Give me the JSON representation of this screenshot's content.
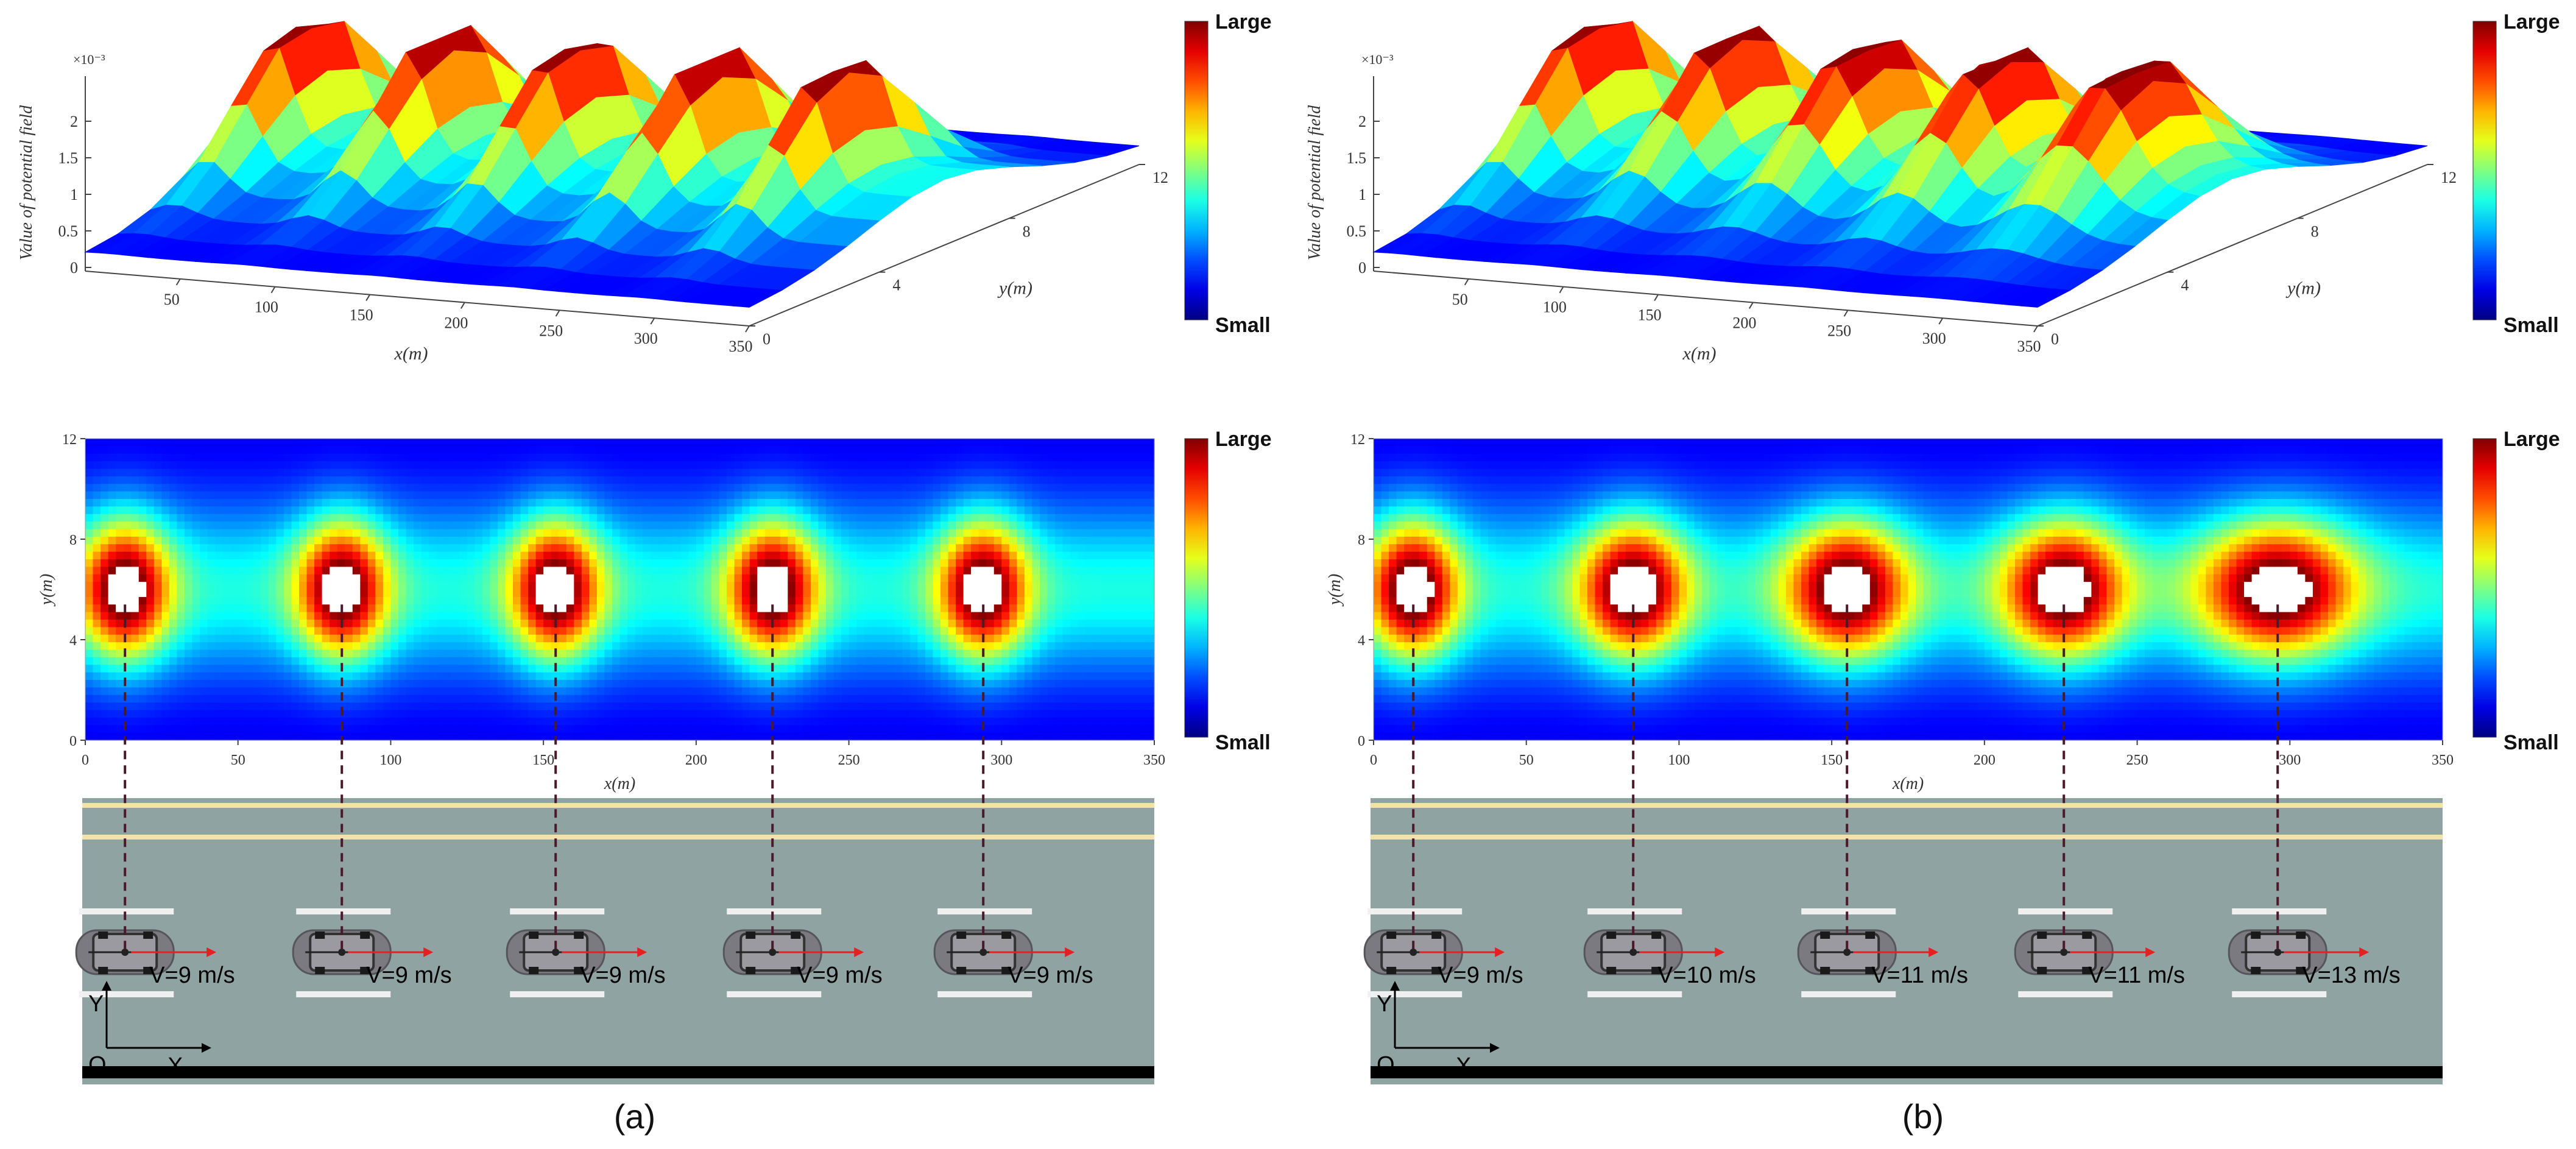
{
  "colorbar": {
    "large": "Large",
    "small": "Small"
  },
  "surface3d": {
    "zlabel": "Value of potential field",
    "zscale": "×10⁻³",
    "zticks": [
      "0",
      "0.5",
      "1",
      "1.5",
      "2"
    ],
    "xlabel": "x(m)",
    "xticks": [
      "50",
      "100",
      "150",
      "200",
      "250",
      "300",
      "350"
    ],
    "ylabel": "y(m)",
    "yticks": [
      "0",
      "4",
      "8",
      "12"
    ]
  },
  "heatmap": {
    "xlabel": "x(m)",
    "ylabel": "y(m)",
    "xticks": [
      "0",
      "50",
      "100",
      "150",
      "200",
      "250",
      "300",
      "350"
    ],
    "yticks": [
      "0",
      "4",
      "8",
      "12"
    ]
  },
  "road": {
    "axis_origin": "O",
    "axis_x": "X",
    "axis_y": "Y"
  },
  "chart_data": [
    {
      "type": "heatmap",
      "panel": "(a)",
      "xlim": [
        0,
        350
      ],
      "ylim": [
        0,
        12
      ],
      "colormap": "jet",
      "vehicles": [
        {
          "x": 13,
          "y": 6,
          "speed_label": "V=9 m/s",
          "speed": 9
        },
        {
          "x": 84,
          "y": 6,
          "speed_label": "V=9 m/s",
          "speed": 9
        },
        {
          "x": 154,
          "y": 6,
          "speed_label": "V=9 m/s",
          "speed": 9
        },
        {
          "x": 225,
          "y": 6,
          "speed_label": "V=9 m/s",
          "speed": 9
        },
        {
          "x": 294,
          "y": 6,
          "speed_label": "V=9 m/s",
          "speed": 9
        }
      ]
    },
    {
      "type": "heatmap",
      "panel": "(b)",
      "xlim": [
        0,
        350
      ],
      "ylim": [
        0,
        12
      ],
      "colormap": "jet",
      "vehicles": [
        {
          "x": 13,
          "y": 6,
          "speed_label": "V=9 m/s",
          "speed": 9
        },
        {
          "x": 85,
          "y": 6,
          "speed_label": "V=10 m/s",
          "speed": 10
        },
        {
          "x": 155,
          "y": 6,
          "speed_label": "V=11 m/s",
          "speed": 11
        },
        {
          "x": 226,
          "y": 6,
          "speed_label": "V=11 m/s",
          "speed": 11
        },
        {
          "x": 296,
          "y": 6,
          "speed_label": "V=13 m/s",
          "speed": 13
        }
      ]
    }
  ],
  "captions": [
    "(a)",
    "(b)"
  ]
}
